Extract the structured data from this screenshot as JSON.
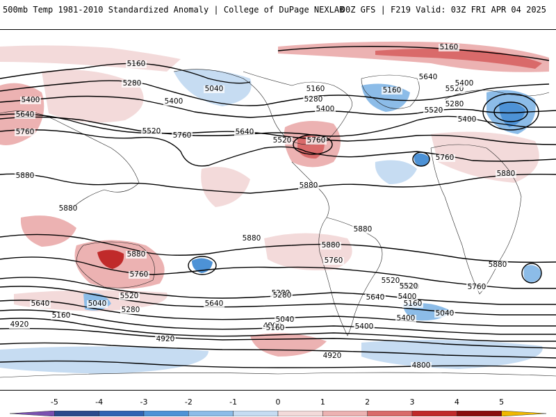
{
  "header": {
    "title_left": "500mb Temp 1981-2010 Standardized Anomaly | College of DuPage NEXLAB",
    "title_right": "00Z GFS | F219 Valid: 03Z FRI APR 04 2025"
  },
  "colorbar": {
    "ticks": [
      "-5",
      "-4",
      "-3",
      "-2",
      "-1",
      "0",
      "1",
      "2",
      "3",
      "4",
      "5"
    ],
    "colors": [
      "#7a4fb0",
      "#2b4a8c",
      "#2f63b3",
      "#4d92d6",
      "#8cbce8",
      "#c6dcf2",
      "#f3dada",
      "#ecb2b2",
      "#d96a6a",
      "#c02a2a",
      "#8a0c0c",
      "#f0b800"
    ]
  },
  "contour_labels": [
    "5160",
    "5280",
    "5400",
    "5520",
    "5640",
    "5760",
    "5880",
    "5040",
    "4920",
    "4800"
  ],
  "map_labels": [
    {
      "text": "5160"
    },
    {
      "text": "5280"
    },
    {
      "text": "5400"
    },
    {
      "text": "5640"
    },
    {
      "text": "5760"
    },
    {
      "text": "5880"
    },
    {
      "text": "5400"
    },
    {
      "text": "5520"
    },
    {
      "text": "5760"
    },
    {
      "text": "5640"
    },
    {
      "text": "5040"
    },
    {
      "text": "5160"
    },
    {
      "text": "5280"
    },
    {
      "text": "5400"
    },
    {
      "text": "5520"
    },
    {
      "text": "5760"
    },
    {
      "text": "5880"
    },
    {
      "text": "5160"
    },
    {
      "text": "5640"
    },
    {
      "text": "5520"
    },
    {
      "text": "5280"
    },
    {
      "text": "5400"
    },
    {
      "text": "5160"
    },
    {
      "text": "5520"
    },
    {
      "text": "5400"
    },
    {
      "text": "5760"
    },
    {
      "text": "5880"
    },
    {
      "text": "5880"
    },
    {
      "text": "5880"
    },
    {
      "text": "5880"
    },
    {
      "text": "5880"
    },
    {
      "text": "5880"
    },
    {
      "text": "5880"
    },
    {
      "text": "5760"
    },
    {
      "text": "5760"
    },
    {
      "text": "5760"
    },
    {
      "text": "5520"
    },
    {
      "text": "5280"
    },
    {
      "text": "5640"
    },
    {
      "text": "5520"
    },
    {
      "text": "5640"
    },
    {
      "text": "5040"
    },
    {
      "text": "5400"
    },
    {
      "text": "5160"
    },
    {
      "text": "5520"
    },
    {
      "text": "5280"
    },
    {
      "text": "5400"
    },
    {
      "text": "5160"
    },
    {
      "text": "5040"
    },
    {
      "text": "4800"
    },
    {
      "text": "4920"
    },
    {
      "text": "5520"
    },
    {
      "text": "5280"
    },
    {
      "text": "5160"
    },
    {
      "text": "5040"
    },
    {
      "text": "5640"
    },
    {
      "text": "5400"
    },
    {
      "text": "4920"
    },
    {
      "text": "4800"
    },
    {
      "text": "4920"
    }
  ]
}
